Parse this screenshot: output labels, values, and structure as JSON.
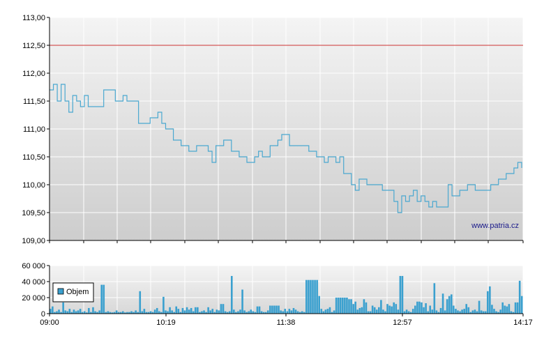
{
  "chart_data": [
    {
      "type": "line",
      "title": "",
      "xlabel": "",
      "ylabel": "",
      "ylim": [
        109.0,
        113.0
      ],
      "yticks": [
        "113,00",
        "112,50",
        "112,00",
        "111,50",
        "111,00",
        "110,50",
        "110,00",
        "109,50",
        "109,00"
      ],
      "reference_line": {
        "value": 112.5,
        "color": "#cc3333"
      },
      "watermark": "www.patria.cz",
      "grid": true,
      "line_color": "#4aa8d0",
      "series": [
        {
          "values": [
            [
              0,
              111.7
            ],
            [
              1,
              111.8
            ],
            [
              2,
              111.5
            ],
            [
              3,
              111.8
            ],
            [
              4,
              111.5
            ],
            [
              5,
              111.3
            ],
            [
              6,
              111.6
            ],
            [
              7,
              111.5
            ],
            [
              8,
              111.4
            ],
            [
              9,
              111.6
            ],
            [
              10,
              111.4
            ],
            [
              12,
              111.4
            ],
            [
              14,
              111.7
            ],
            [
              16,
              111.7
            ],
            [
              17,
              111.5
            ],
            [
              19,
              111.6
            ],
            [
              20,
              111.5
            ],
            [
              21,
              111.5
            ],
            [
              23,
              111.1
            ],
            [
              26,
              111.2
            ],
            [
              28,
              111.3
            ],
            [
              29,
              111.1
            ],
            [
              30,
              111.0
            ],
            [
              32,
              110.8
            ],
            [
              34,
              110.7
            ],
            [
              36,
              110.6
            ],
            [
              38,
              110.7
            ],
            [
              41,
              110.6
            ],
            [
              42,
              110.4
            ],
            [
              43,
              110.7
            ],
            [
              45,
              110.8
            ],
            [
              47,
              110.6
            ],
            [
              49,
              110.5
            ],
            [
              51,
              110.4
            ],
            [
              53,
              110.5
            ],
            [
              54,
              110.6
            ],
            [
              55,
              110.5
            ],
            [
              57,
              110.7
            ],
            [
              59,
              110.8
            ],
            [
              60,
              110.9
            ],
            [
              62,
              110.7
            ],
            [
              65,
              110.7
            ],
            [
              67,
              110.6
            ],
            [
              69,
              110.5
            ],
            [
              71,
              110.4
            ],
            [
              72,
              110.5
            ],
            [
              74,
              110.4
            ],
            [
              75,
              110.5
            ],
            [
              76,
              110.2
            ],
            [
              78,
              110.0
            ],
            [
              79,
              109.9
            ],
            [
              80,
              110.1
            ],
            [
              82,
              110.0
            ],
            [
              84,
              110.0
            ],
            [
              86,
              109.9
            ],
            [
              88,
              109.9
            ],
            [
              89,
              109.7
            ],
            [
              90,
              109.5
            ],
            [
              91,
              109.8
            ],
            [
              92,
              109.7
            ],
            [
              93,
              109.8
            ],
            [
              94,
              109.9
            ],
            [
              95,
              109.7
            ],
            [
              96,
              109.8
            ],
            [
              97,
              109.7
            ],
            [
              98,
              109.6
            ],
            [
              99,
              109.7
            ],
            [
              100,
              109.6
            ],
            [
              102,
              109.6
            ],
            [
              103,
              110.0
            ],
            [
              104,
              109.8
            ],
            [
              106,
              109.9
            ],
            [
              108,
              110.0
            ],
            [
              110,
              109.9
            ],
            [
              112,
              109.9
            ],
            [
              114,
              110.0
            ],
            [
              116,
              110.1
            ],
            [
              118,
              110.2
            ],
            [
              120,
              110.3
            ],
            [
              121,
              110.4
            ],
            [
              122,
              110.3
            ]
          ]
        }
      ]
    },
    {
      "type": "bar",
      "title": "",
      "ylim": [
        0,
        60000
      ],
      "yticks": [
        "60 000",
        "40 000",
        "20 000",
        "0"
      ],
      "xticks": [
        "09:00",
        "10:19",
        "11:38",
        "12:57",
        "14:17"
      ],
      "legend": {
        "label": "Objem",
        "position": "top-left"
      },
      "grid": true,
      "bar_color": "#3aa0cf",
      "values": [
        6000,
        9000,
        2000,
        3000,
        5000,
        2000,
        14000,
        4000,
        3000,
        6000,
        2000,
        5000,
        3000,
        4000,
        6000,
        2000,
        3000,
        1500,
        7000,
        2000,
        8000,
        3000,
        2000,
        4000,
        36000,
        36000,
        2000,
        3000,
        2000,
        1500,
        2000,
        4000,
        2000,
        2000,
        3000,
        1500,
        2000,
        2000,
        3000,
        2000,
        4000,
        2000,
        28000,
        3000,
        6000,
        2000,
        2000,
        3000,
        2000,
        5000,
        7000,
        3000,
        2000,
        21000,
        4000,
        3000,
        8000,
        4000,
        2000,
        9000,
        6000,
        2000,
        7000,
        4000,
        8000,
        5000,
        7000,
        3000,
        8000,
        8000,
        2000,
        3000,
        4000,
        2000,
        8000,
        4000,
        6000,
        2000,
        5000,
        4000,
        12000,
        12000,
        3000,
        2000,
        3000,
        47000,
        5000,
        2000,
        3000,
        5000,
        30000,
        4000,
        2000,
        3000,
        5000,
        3000,
        2000,
        9000,
        9000,
        3000,
        2000,
        2000,
        4000,
        10000,
        10000,
        10000,
        10000,
        10000,
        4000,
        3000,
        6000,
        3000,
        6000,
        4000,
        7000,
        5000,
        3000,
        2000,
        3000,
        2000,
        42000,
        42000,
        42000,
        42000,
        42000,
        42000,
        22000,
        6000,
        3000,
        5000,
        6000,
        8000,
        2000,
        4000,
        20000,
        20000,
        20000,
        20000,
        20000,
        20000,
        18000,
        18000,
        12000,
        15000,
        5000,
        7000,
        8000,
        18000,
        14000,
        3000,
        3000,
        10000,
        8000,
        5000,
        8000,
        17000,
        5000,
        3000,
        12000,
        10000,
        9000,
        14000,
        12000,
        5000,
        47000,
        47000,
        3000,
        5000,
        3000,
        2000,
        6000,
        10000,
        15000,
        15000,
        14000,
        8000,
        13000,
        3000,
        10000,
        5000,
        38000,
        4000,
        2000,
        7000,
        25000,
        4000,
        18000,
        22000,
        24000,
        10000,
        6000,
        4000,
        3000,
        5000,
        6000,
        12000,
        8000,
        2000,
        4000,
        5000,
        3000,
        16000,
        4000,
        3000,
        3000,
        28000,
        34000,
        11000,
        6000,
        3000,
        2000,
        5000,
        14000,
        10000,
        9000,
        12000,
        3000,
        2000,
        14000,
        14000,
        41000,
        22000
      ]
    }
  ]
}
